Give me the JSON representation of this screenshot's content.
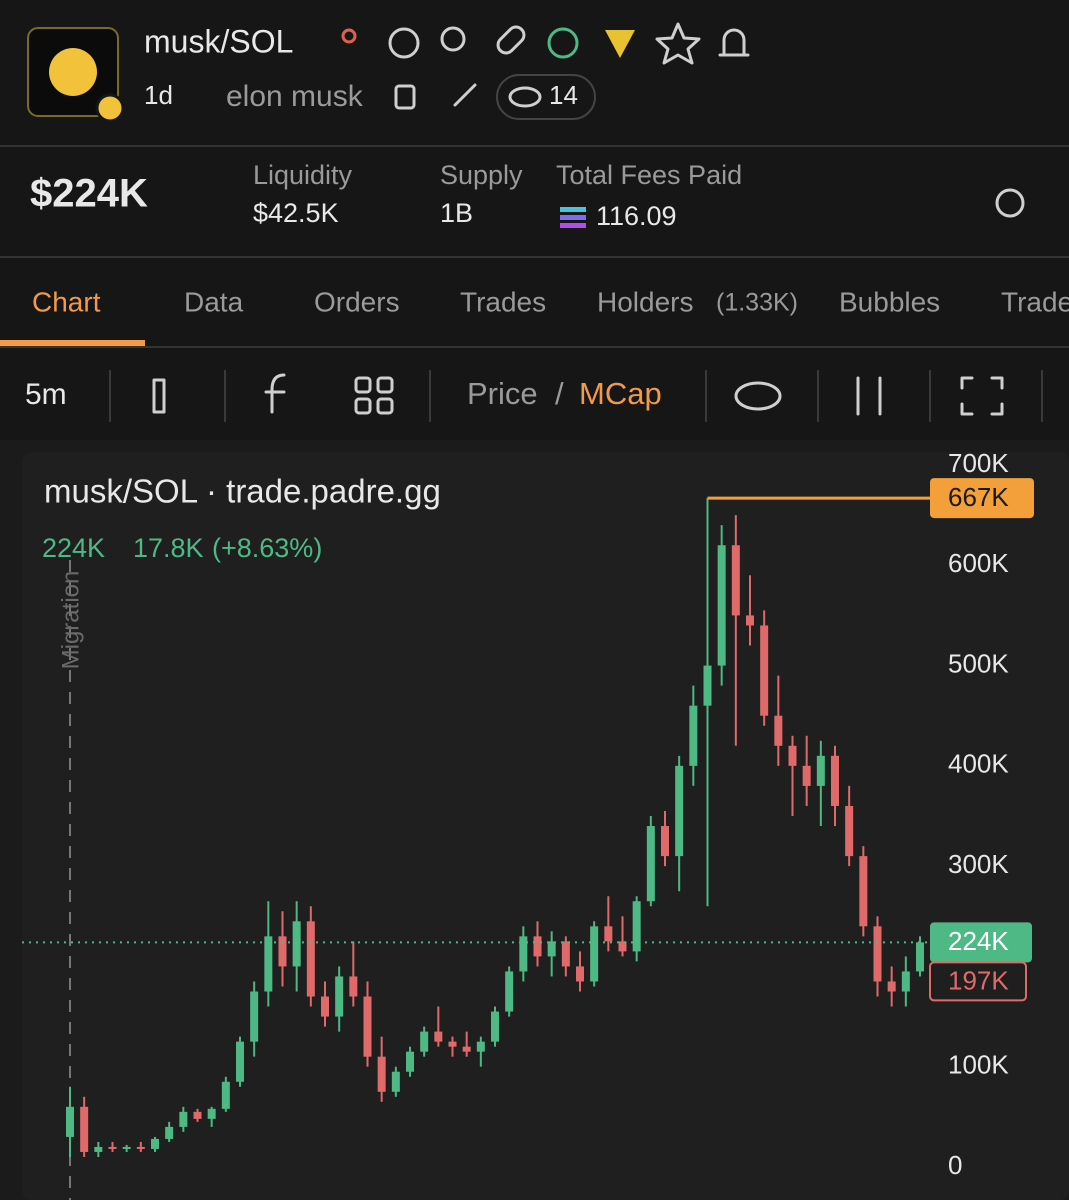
{
  "header": {
    "title": "musk/SOL",
    "age": "1d",
    "creator": "elon musk",
    "watchers": "14"
  },
  "stats": {
    "market_cap": "$224K",
    "liquidity": {
      "label": "Liquidity",
      "value": "$42.5K"
    },
    "supply": {
      "label": "Supply",
      "value": "1B"
    },
    "fees": {
      "label": "Total Fees Paid",
      "value": "116.09"
    }
  },
  "tabs": [
    {
      "label": "Chart"
    },
    {
      "label": "Data"
    },
    {
      "label": "Orders"
    },
    {
      "label": "Trades"
    },
    {
      "label": "Holders",
      "count": "(1.33K)"
    },
    {
      "label": "Bubbles"
    },
    {
      "label": "Trade"
    }
  ],
  "toolbar": {
    "interval": "5m",
    "price": "Price",
    "separator": "/",
    "mcap": "MCap"
  },
  "chart_data": {
    "type": "candlestick",
    "title": "musk/SOL · trade.padre.gg",
    "legend": {
      "last": "224K",
      "change": "17.8K",
      "change_pct": "(+8.63%)"
    },
    "annotation": "Migration",
    "ylim": [
      0,
      700000
    ],
    "yticks": [
      {
        "value": 0,
        "label": "0"
      },
      {
        "value": 100000,
        "label": "100K"
      },
      {
        "value": 200000,
        "label": "200K"
      },
      {
        "value": 300000,
        "label": "300K"
      },
      {
        "value": 400000,
        "label": "400K"
      },
      {
        "value": 500000,
        "label": "500K"
      },
      {
        "value": 600000,
        "label": "600K"
      },
      {
        "value": 700000,
        "label": "700K"
      }
    ],
    "colors": {
      "up": "#4fb985",
      "down": "#e06a6a",
      "high": "#f3a03a"
    },
    "open": [
      30000,
      60000,
      15000,
      20000,
      18000,
      20000,
      18000,
      28000,
      40000,
      55000,
      48000,
      58000,
      85000,
      125000,
      175000,
      230000,
      200000,
      245000,
      170000,
      150000,
      190000,
      170000,
      110000,
      75000,
      95000,
      115000,
      135000,
      125000,
      120000,
      115000,
      125000,
      155000,
      195000,
      230000,
      210000,
      225000,
      200000,
      185000,
      240000,
      225000,
      215000,
      265000,
      340000,
      310000,
      400000,
      460000,
      500000,
      620000,
      550000,
      540000,
      450000,
      420000,
      400000,
      380000,
      410000,
      360000,
      310000,
      240000,
      185000,
      175000,
      195000
    ],
    "high": [
      80000,
      70000,
      25000,
      25000,
      22000,
      25000,
      30000,
      45000,
      60000,
      58000,
      60000,
      90000,
      130000,
      185000,
      265000,
      255000,
      265000,
      260000,
      185000,
      200000,
      225000,
      185000,
      130000,
      100000,
      120000,
      140000,
      160000,
      130000,
      135000,
      130000,
      160000,
      200000,
      240000,
      245000,
      235000,
      230000,
      215000,
      245000,
      270000,
      250000,
      270000,
      350000,
      355000,
      410000,
      480000,
      667000,
      640000,
      650000,
      590000,
      555000,
      490000,
      430000,
      430000,
      425000,
      420000,
      380000,
      320000,
      250000,
      200000,
      210000,
      230000
    ],
    "low": [
      10000,
      10000,
      10000,
      15000,
      15000,
      15000,
      15000,
      25000,
      35000,
      45000,
      40000,
      55000,
      80000,
      110000,
      160000,
      180000,
      175000,
      160000,
      140000,
      135000,
      160000,
      100000,
      65000,
      70000,
      90000,
      110000,
      120000,
      110000,
      110000,
      100000,
      120000,
      150000,
      185000,
      200000,
      190000,
      190000,
      175000,
      180000,
      215000,
      210000,
      205000,
      260000,
      300000,
      275000,
      380000,
      260000,
      480000,
      420000,
      520000,
      440000,
      400000,
      350000,
      360000,
      340000,
      340000,
      300000,
      230000,
      170000,
      160000,
      160000,
      190000
    ],
    "close": [
      60000,
      15000,
      20000,
      18000,
      20000,
      18000,
      28000,
      40000,
      55000,
      48000,
      58000,
      85000,
      125000,
      175000,
      230000,
      200000,
      245000,
      170000,
      150000,
      190000,
      170000,
      110000,
      75000,
      95000,
      115000,
      135000,
      125000,
      120000,
      115000,
      125000,
      155000,
      195000,
      230000,
      210000,
      225000,
      200000,
      185000,
      240000,
      225000,
      215000,
      265000,
      340000,
      310000,
      400000,
      460000,
      500000,
      620000,
      550000,
      540000,
      450000,
      420000,
      400000,
      380000,
      410000,
      360000,
      310000,
      240000,
      185000,
      175000,
      195000,
      224000
    ],
    "last_price": {
      "value": 224000,
      "label": "224K"
    },
    "high_price": {
      "value": 667000,
      "label": "667K"
    },
    "marker_price": {
      "value": 197000,
      "label": "197K"
    }
  }
}
